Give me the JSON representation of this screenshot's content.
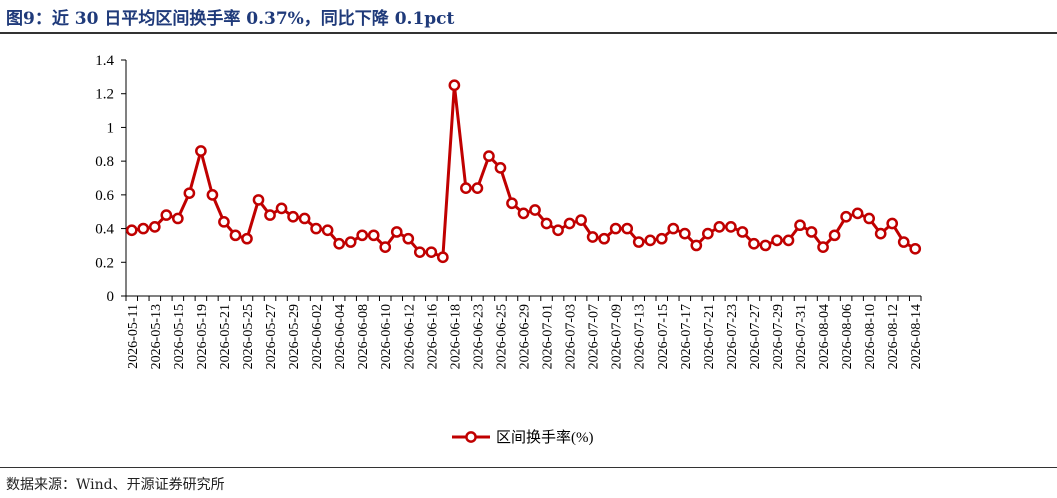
{
  "header": {
    "title": "图9：近 30 日平均区间换手率 0.37%，同比下降 0.1pct"
  },
  "footer": {
    "source": "数据来源：Wind、开源证券研究所"
  },
  "chart_data": {
    "type": "line",
    "title": "",
    "xlabel": "",
    "ylabel": "",
    "ylim": [
      0,
      1.4
    ],
    "yticks": [
      "0",
      "0.2",
      "0.4",
      "0.6",
      "0.8",
      "1",
      "1.2",
      "1.4"
    ],
    "grid": false,
    "legend_position": "bottom-center",
    "color": "#c00000",
    "tick_labels": [
      "2026-05-11",
      "2026-05-13",
      "2026-05-15",
      "2026-05-19",
      "2026-05-21",
      "2026-05-25",
      "2026-05-27",
      "2026-05-29",
      "2026-06-02",
      "2026-06-04",
      "2026-06-08",
      "2026-06-10",
      "2026-06-12",
      "2026-06-16",
      "2026-06-18",
      "2026-06-23",
      "2026-06-25",
      "2026-06-29",
      "2026-07-01",
      "2026-07-03",
      "2026-07-07",
      "2026-07-09",
      "2026-07-13",
      "2026-07-15",
      "2026-07-17",
      "2026-07-21",
      "2026-07-23",
      "2026-07-27",
      "2026-07-29",
      "2026-07-31",
      "2026-08-04",
      "2026-08-06",
      "2026-08-10",
      "2026-08-12",
      "2026-08-14"
    ],
    "series": [
      {
        "name": "区间换手率(%)",
        "values": [
          0.39,
          0.4,
          0.41,
          0.48,
          0.46,
          0.61,
          0.86,
          0.6,
          0.44,
          0.36,
          0.34,
          0.57,
          0.48,
          0.52,
          0.47,
          0.46,
          0.4,
          0.39,
          0.31,
          0.32,
          0.36,
          0.36,
          0.29,
          0.38,
          0.34,
          0.26,
          0.26,
          0.23,
          1.25,
          0.64,
          0.64,
          0.83,
          0.76,
          0.55,
          0.49,
          0.51,
          0.43,
          0.39,
          0.43,
          0.45,
          0.35,
          0.34,
          0.4,
          0.4,
          0.32,
          0.33,
          0.34,
          0.4,
          0.37,
          0.3,
          0.37,
          0.41,
          0.41,
          0.38,
          0.31,
          0.3,
          0.33,
          0.33,
          0.42,
          0.38,
          0.29,
          0.36,
          0.47,
          0.49,
          0.46,
          0.37,
          0.43,
          0.32,
          0.28
        ]
      }
    ]
  }
}
